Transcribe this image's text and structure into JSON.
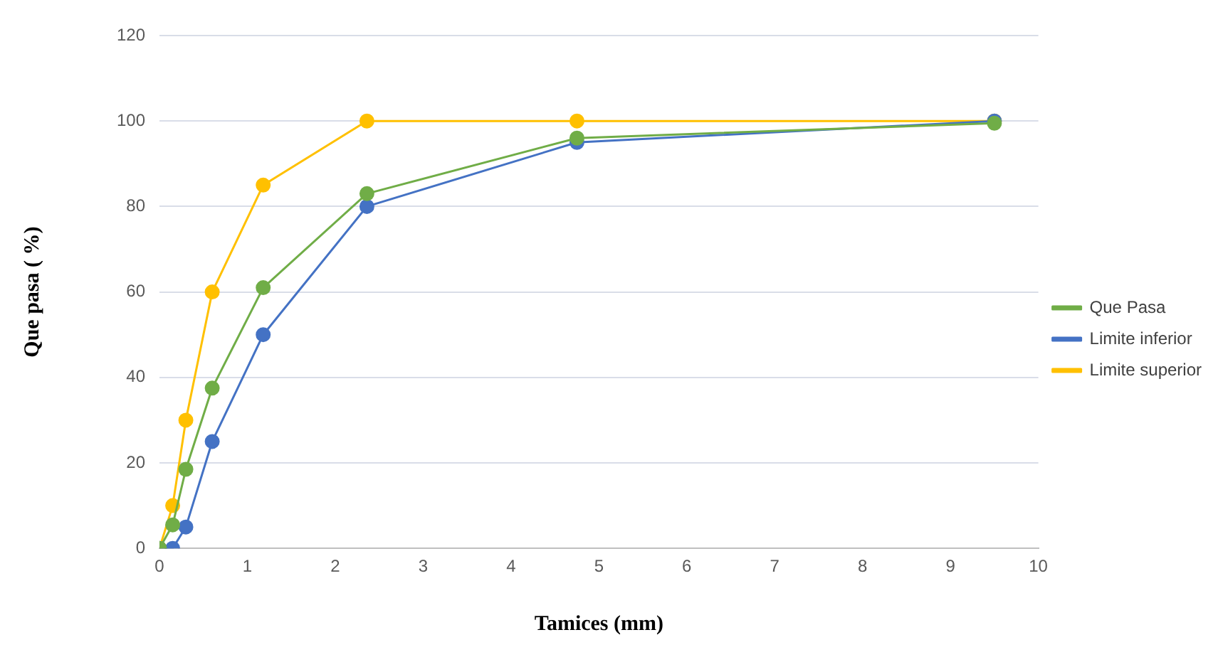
{
  "chart_data": {
    "type": "line",
    "xlabel": "Tamices (mm)",
    "ylabel": "Que pasa ( %)",
    "x": [
      0,
      0.15,
      0.3,
      0.6,
      1.18,
      2.36,
      4.75,
      9.5
    ],
    "series": [
      {
        "name": "Que Pasa",
        "color": "#70ad47",
        "values": [
          0,
          5.5,
          18.5,
          37.5,
          61,
          83,
          96,
          99.5
        ]
      },
      {
        "name": "Limite inferior",
        "color": "#4472c4",
        "values": [
          0,
          0,
          5,
          25,
          50,
          80,
          95,
          100
        ]
      },
      {
        "name": "Limite superior",
        "color": "#ffc000",
        "values": [
          0,
          10,
          30,
          60,
          85,
          100,
          100,
          100
        ]
      }
    ],
    "xlim": [
      0,
      10
    ],
    "xticks": [
      0,
      1,
      2,
      3,
      4,
      5,
      6,
      7,
      8,
      9,
      10
    ],
    "ylim": [
      0,
      120
    ],
    "yticks": [
      0,
      20,
      40,
      60,
      80,
      100,
      120
    ],
    "grid": "y",
    "legend": "right",
    "marker": "circle",
    "line_style": "solid"
  }
}
